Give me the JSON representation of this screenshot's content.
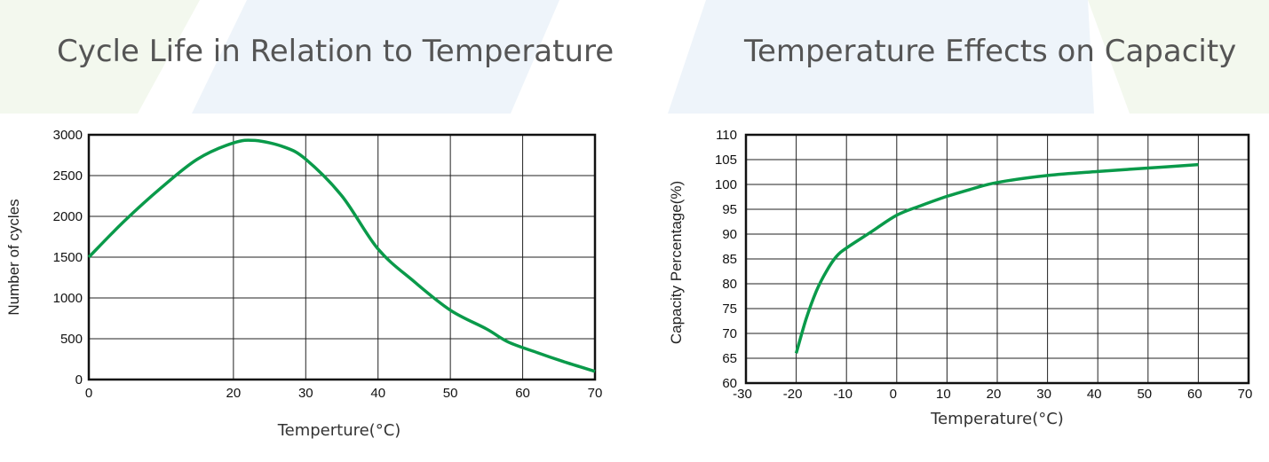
{
  "chart_data": [
    {
      "type": "line",
      "title": "Cycle Life in Relation to Temperature",
      "xlabel": "Temperture(°C)",
      "ylabel": "Number of cycles",
      "xlim": [
        0,
        70
      ],
      "ylim": [
        0,
        3000
      ],
      "x_ticks": [
        0,
        20,
        30,
        40,
        50,
        60,
        70
      ],
      "y_ticks": [
        0,
        500,
        1000,
        1500,
        2000,
        2500,
        3000
      ],
      "grid": true,
      "series": [
        {
          "color": "#0a9a4a",
          "x": [
            0,
            5,
            10,
            15,
            20,
            23,
            27,
            30,
            35,
            40,
            45,
            50,
            55,
            58,
            62,
            66,
            70
          ],
          "y": [
            1500,
            1950,
            2350,
            2700,
            2900,
            2930,
            2850,
            2700,
            2250,
            1600,
            1200,
            850,
            620,
            460,
            330,
            210,
            100
          ]
        }
      ]
    },
    {
      "type": "line",
      "title": "Temperature Effects on Capacity",
      "xlabel": "Temperature(°C)",
      "ylabel": "Capacity Percentage(%)",
      "xlim": [
        -30,
        70
      ],
      "ylim": [
        60,
        110
      ],
      "x_ticks": [
        -30,
        -20,
        -10,
        0,
        10,
        20,
        30,
        40,
        50,
        60,
        70
      ],
      "y_ticks": [
        60,
        65,
        70,
        75,
        80,
        85,
        90,
        95,
        100,
        105,
        110
      ],
      "grid": true,
      "series": [
        {
          "color": "#0a9a4a",
          "x": [
            -20,
            -18,
            -16,
            -14,
            -12,
            -10,
            -5,
            0,
            5,
            10,
            15,
            20,
            30,
            40,
            50,
            60
          ],
          "y": [
            66,
            73,
            78.5,
            82.5,
            85.5,
            87.2,
            90.5,
            93.8,
            95.8,
            97.6,
            99.1,
            100.4,
            101.8,
            102.6,
            103.3,
            104
          ]
        }
      ]
    }
  ]
}
